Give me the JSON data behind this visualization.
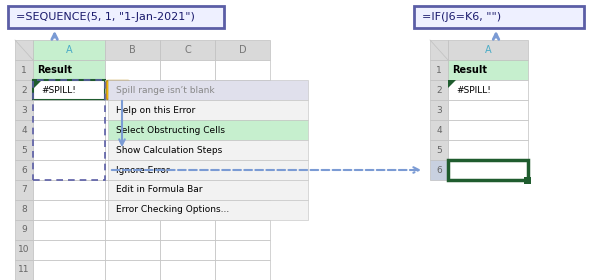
{
  "formula_left": "=SEQUENCE(5, 1, \"1-Jan-2021\")",
  "formula_right": "=IF(J6=K6, \"\")",
  "cell_r1_text": "Result",
  "cell_r2_text": "#SPILL!",
  "spill_text": "#SPILL!",
  "menu_items": [
    "Spill range isn’t blank",
    "Help on this Error",
    "Select Obstructing Cells",
    "Show Calculation Steps",
    "Ignore Error",
    "Edit in Formula Bar",
    "Error Checking Options..."
  ],
  "highlighted_menu_item": "Select Obstructing Cells",
  "arrow_color": "#7B9BD4",
  "formula_box_border": "#5B5EA6",
  "formula_box_bg": "#EEF0FF",
  "grid_color": "#C0C0C0",
  "header_bg": "#D9D9D9",
  "header_col_A_bg": "#C6EFCE",
  "header_col_A_color": "#4BACC6",
  "spill_cell_border": "#1F5C2E",
  "menu_highlight_bg": "#C6EFCE",
  "menu_gray_bg": "#E0E0EC",
  "menu_bg": "#F2F2F2",
  "dashed_spill_color": "#5B5EA6",
  "warn_icon_bg": "#FFC000",
  "warn_icon_border": "#C09020",
  "selected_cell_bg": "#9DC08B"
}
